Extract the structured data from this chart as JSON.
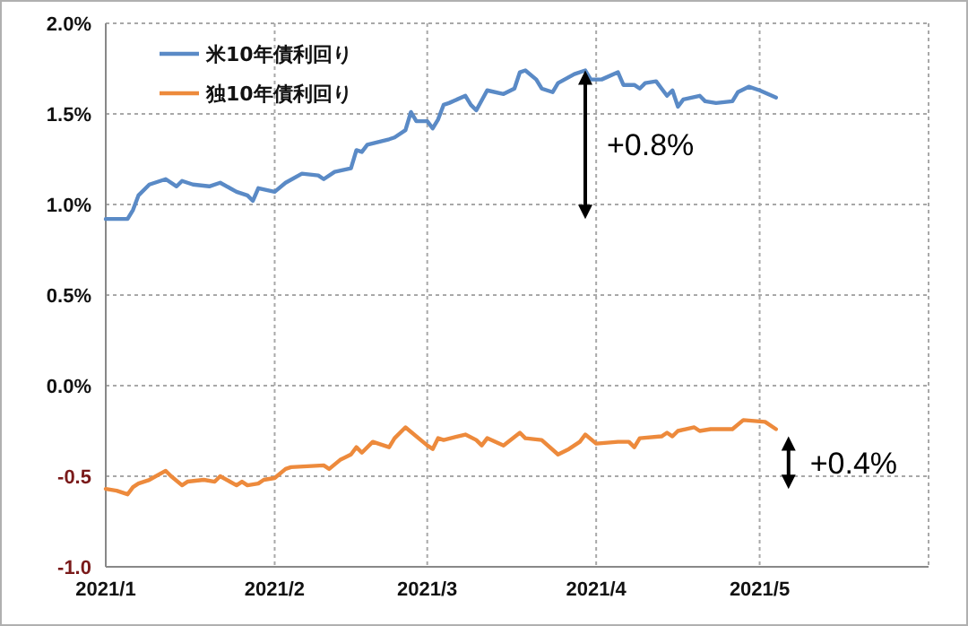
{
  "chart_data": {
    "type": "line",
    "x": [
      "2021-01-01",
      "2021-01-05",
      "2021-01-06",
      "2021-01-07",
      "2021-01-09",
      "2021-01-12",
      "2021-01-14",
      "2021-01-15",
      "2021-01-17",
      "2021-01-20",
      "2021-01-22",
      "2021-01-25",
      "2021-01-27",
      "2021-01-28",
      "2021-01-29",
      "2021-02-01",
      "2021-02-03",
      "2021-02-06",
      "2021-02-09",
      "2021-02-10",
      "2021-02-12",
      "2021-02-15",
      "2021-02-16",
      "2021-02-17",
      "2021-02-18",
      "2021-02-22",
      "2021-02-23",
      "2021-02-25",
      "2021-02-26",
      "2021-02-27",
      "2021-03-01",
      "2021-03-02",
      "2021-03-03",
      "2021-03-04",
      "2021-03-05",
      "2021-03-08",
      "2021-03-09",
      "2021-03-10",
      "2021-03-12",
      "2021-03-15",
      "2021-03-17",
      "2021-03-18",
      "2021-03-19",
      "2021-03-21",
      "2021-03-22",
      "2021-03-24",
      "2021-03-25",
      "2021-03-28",
      "2021-03-30",
      "2021-03-31",
      "2021-04-02",
      "2021-04-05",
      "2021-04-06",
      "2021-04-08",
      "2021-04-09",
      "2021-04-10",
      "2021-04-12",
      "2021-04-13",
      "2021-04-14",
      "2021-04-15",
      "2021-04-16",
      "2021-04-17",
      "2021-04-20",
      "2021-04-21",
      "2021-04-23",
      "2021-04-26",
      "2021-04-27",
      "2021-04-29",
      "2021-05-01",
      "2021-05-04"
    ],
    "series": [
      {
        "name": "米10年債利回り",
        "color": "#5a8ac6",
        "values": [
          0.92,
          0.92,
          0.97,
          1.05,
          1.11,
          1.14,
          1.1,
          1.13,
          1.11,
          1.1,
          1.12,
          1.07,
          1.05,
          1.02,
          1.09,
          1.07,
          1.12,
          1.17,
          1.16,
          1.14,
          1.18,
          1.2,
          1.3,
          1.29,
          1.33,
          1.36,
          1.37,
          1.41,
          1.51,
          1.46,
          1.46,
          1.42,
          1.47,
          1.55,
          1.56,
          1.6,
          1.55,
          1.52,
          1.63,
          1.61,
          1.64,
          1.73,
          1.74,
          1.69,
          1.64,
          1.62,
          1.67,
          1.72,
          1.74,
          1.69,
          1.69,
          1.73,
          1.66,
          1.66,
          1.64,
          1.67,
          1.68,
          1.64,
          1.6,
          1.63,
          1.54,
          1.58,
          1.6,
          1.57,
          1.56,
          1.57,
          1.62,
          1.65,
          1.63,
          1.59
        ]
      },
      {
        "name": "独10年債利回り",
        "color": "#ed8a3c",
        "x": [
          "2021-01-01",
          "2021-01-03",
          "2021-01-05",
          "2021-01-06",
          "2021-01-07",
          "2021-01-08",
          "2021-01-09",
          "2021-01-12",
          "2021-01-13",
          "2021-01-15",
          "2021-01-16",
          "2021-01-19",
          "2021-01-21",
          "2021-01-22",
          "2021-01-25",
          "2021-01-26",
          "2021-01-27",
          "2021-01-29",
          "2021-01-30",
          "2021-02-01",
          "2021-02-03",
          "2021-02-04",
          "2021-02-10",
          "2021-02-11",
          "2021-02-13",
          "2021-02-15",
          "2021-02-16",
          "2021-02-17",
          "2021-02-19",
          "2021-02-22",
          "2021-02-23",
          "2021-02-25",
          "2021-03-01",
          "2021-03-02",
          "2021-03-03",
          "2021-03-04",
          "2021-03-08",
          "2021-03-10",
          "2021-03-11",
          "2021-03-12",
          "2021-03-15",
          "2021-03-18",
          "2021-03-19",
          "2021-03-22",
          "2021-03-25",
          "2021-03-27",
          "2021-03-29",
          "2021-03-30",
          "2021-04-01",
          "2021-04-05",
          "2021-04-07",
          "2021-04-08",
          "2021-04-09",
          "2021-04-13",
          "2021-04-14",
          "2021-04-15",
          "2021-04-16",
          "2021-04-19",
          "2021-04-20",
          "2021-04-22",
          "2021-04-26",
          "2021-04-28",
          "2021-05-02",
          "2021-05-04"
        ],
        "values": [
          -0.57,
          -0.58,
          -0.6,
          -0.56,
          -0.54,
          -0.53,
          -0.52,
          -0.47,
          -0.5,
          -0.55,
          -0.53,
          -0.52,
          -0.53,
          -0.5,
          -0.55,
          -0.53,
          -0.55,
          -0.54,
          -0.52,
          -0.51,
          -0.46,
          -0.45,
          -0.44,
          -0.46,
          -0.41,
          -0.38,
          -0.34,
          -0.37,
          -0.31,
          -0.34,
          -0.29,
          -0.23,
          -0.33,
          -0.35,
          -0.29,
          -0.3,
          -0.27,
          -0.3,
          -0.33,
          -0.29,
          -0.33,
          -0.26,
          -0.29,
          -0.3,
          -0.38,
          -0.35,
          -0.31,
          -0.27,
          -0.32,
          -0.31,
          -0.31,
          -0.34,
          -0.29,
          -0.28,
          -0.26,
          -0.28,
          -0.25,
          -0.23,
          -0.25,
          -0.24,
          -0.24,
          -0.19,
          -0.2,
          -0.24
        ]
      }
    ],
    "xlim": [
      "2021-01-01",
      "2021-06-01"
    ],
    "xticks": [
      {
        "value": "2021-01-01",
        "label": "2021/1"
      },
      {
        "value": "2021-02-01",
        "label": "2021/2"
      },
      {
        "value": "2021-03-01",
        "label": "2021/3"
      },
      {
        "value": "2021-04-01",
        "label": "2021/4"
      },
      {
        "value": "2021-05-01",
        "label": "2021/5"
      },
      {
        "value": "2021-06-01",
        "label": null
      }
    ],
    "ylim": [
      -1.0,
      2.0
    ],
    "yticks": [
      {
        "value": -1.0,
        "label": "-1.0"
      },
      {
        "value": -0.5,
        "label": "-0.5"
      },
      {
        "value": 0,
        "label": "0.0%"
      },
      {
        "value": 0.5,
        "label": "0.5%"
      },
      {
        "value": 1.0,
        "label": "1.0%"
      },
      {
        "value": 1.5,
        "label": "1.5%"
      },
      {
        "value": 2.0,
        "label": "2.0%"
      }
    ],
    "grid": true,
    "legend": "top left",
    "annotations": [
      {
        "text": "+0.8%",
        "x": "2021-03-30",
        "y": 1.74
      },
      {
        "text": "+0.4%",
        "x": "2021-05-04",
        "y": -0.24
      }
    ]
  }
}
